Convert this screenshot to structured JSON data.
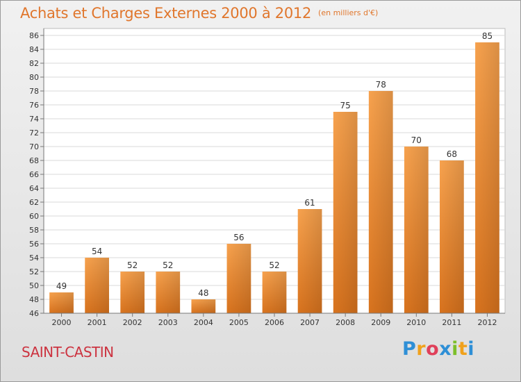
{
  "chart_data": {
    "type": "bar",
    "title": "Achats et Charges Externes 2000 à 2012",
    "unit": "(en milliers d'€)",
    "categories": [
      "2000",
      "2001",
      "2002",
      "2003",
      "2004",
      "2005",
      "2006",
      "2007",
      "2008",
      "2009",
      "2010",
      "2011",
      "2012"
    ],
    "values": [
      49,
      54,
      52,
      52,
      48,
      56,
      52,
      61,
      75,
      78,
      70,
      68,
      85
    ],
    "ylim": [
      46,
      86
    ],
    "ytick_step": 2,
    "grid": true,
    "bar_color": "#f08a2e"
  },
  "place_name": "SAINT-CASTIN",
  "logo": {
    "letters": [
      "P",
      "r",
      "o",
      "x",
      "i",
      "t",
      "i"
    ],
    "colors": [
      "#2e8fd6",
      "#f0a11c",
      "#e0405a",
      "#2e8fd6",
      "#7cbf2a",
      "#f0a11c",
      "#2e8fd6"
    ]
  }
}
